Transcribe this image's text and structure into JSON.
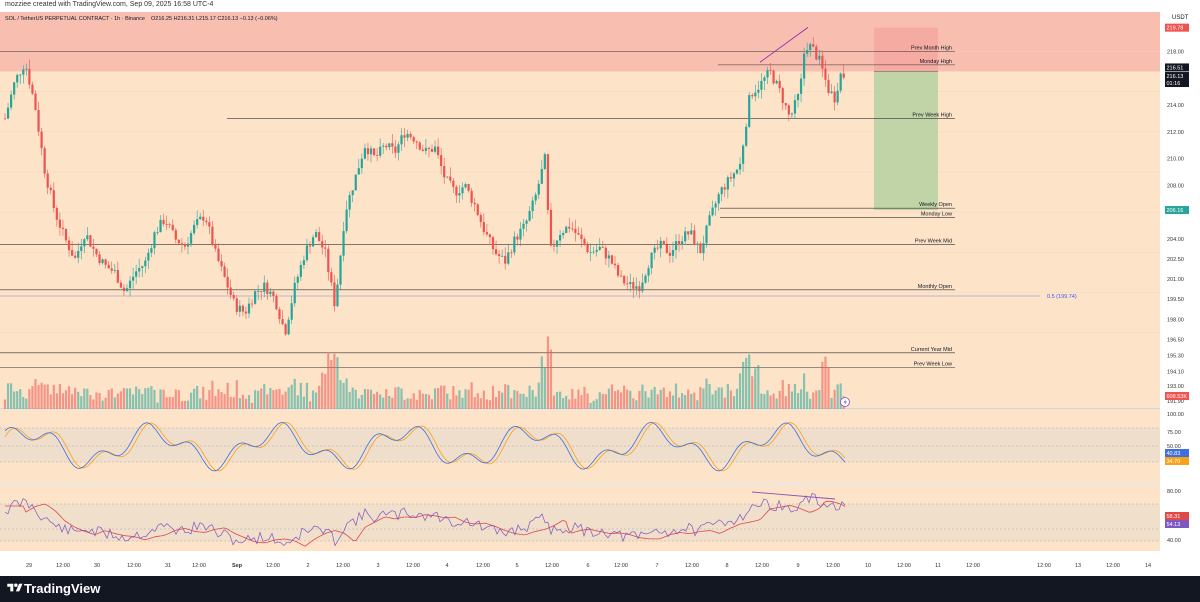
{
  "header": {
    "credit": "mozziee created with TradingView.com, Sep 09, 2025 16:58 UTC-4"
  },
  "legend": {
    "symbol": "SOL / TetherUS PERPETUAL CONTRACT · 1h · Binance",
    "ohlc": "O216.25 H216.31 L215.17 C216.13 −0.13 (−0.06%)"
  },
  "price_axis": {
    "currency": "USDT",
    "ticks": [
      "218.00",
      "216.00",
      "214.00",
      "212.00",
      "210.00",
      "208.00",
      "206.00",
      "204.00",
      "202.50",
      "201.00",
      "199.50",
      "198.00",
      "196.50",
      "195.30",
      "194.10",
      "193.00",
      "191.90"
    ],
    "tags": {
      "sl": "219.78",
      "level": "216.51",
      "last": "216.13",
      "countdown": "01:16",
      "target": "206.16",
      "volume": "608.53K"
    }
  },
  "levels": [
    {
      "label": "Prev Month High",
      "price": 218.0
    },
    {
      "label": "Monday High",
      "price": 217.0
    },
    {
      "label": "Prev Week High",
      "price": 213.0
    },
    {
      "label": "Weekly Open",
      "price": 206.3
    },
    {
      "label": "Monday Low",
      "price": 205.6
    },
    {
      "label": "Prev Week Mid",
      "price": 203.6
    },
    {
      "label": "Monthly Open",
      "price": 200.2
    },
    {
      "label": "Current Year Mid",
      "price": 195.5
    },
    {
      "label": "Prev Week Low",
      "price": 194.4
    }
  ],
  "fib_label": "0.5 (199.74)",
  "stoch": {
    "ticks": [
      "100.00",
      "75.00",
      "50.00",
      "25.00"
    ],
    "k_value": "40.83",
    "d_value": "34.70",
    "k_color": "#3d6fde",
    "d_color": "#f7a21b"
  },
  "rsi": {
    "ticks": [
      "80.00",
      "40.00"
    ],
    "rsi_value": "58.31",
    "ma_value": "54.13",
    "rsi_color": "#7e57c2",
    "ma_color": "#e04848"
  },
  "time_axis": [
    "29",
    "12:00",
    "30",
    "12:00",
    "31",
    "12:00",
    "Sep",
    "12:00",
    "2",
    "12:00",
    "3",
    "12:00",
    "4",
    "12:00",
    "5",
    "12:00",
    "6",
    "12:00",
    "7",
    "12:00",
    "8",
    "12:00",
    "9",
    "12:00",
    "10",
    "12:00",
    "11",
    "12:00",
    "12:00",
    "13",
    "12:00",
    "14"
  ],
  "colors": {
    "up": "#26a69a",
    "down": "#ef5350",
    "bg_main": "#fde3c8",
    "bg_red_zone": "#f8bfb0",
    "stop_zone": "#f4a6a0",
    "target_zone": "#b9d2a3",
    "tag_red": "#ef5350",
    "tag_green": "#26a69a",
    "tag_dark": "#131722"
  },
  "footer": {
    "brand": "TradingView"
  }
}
